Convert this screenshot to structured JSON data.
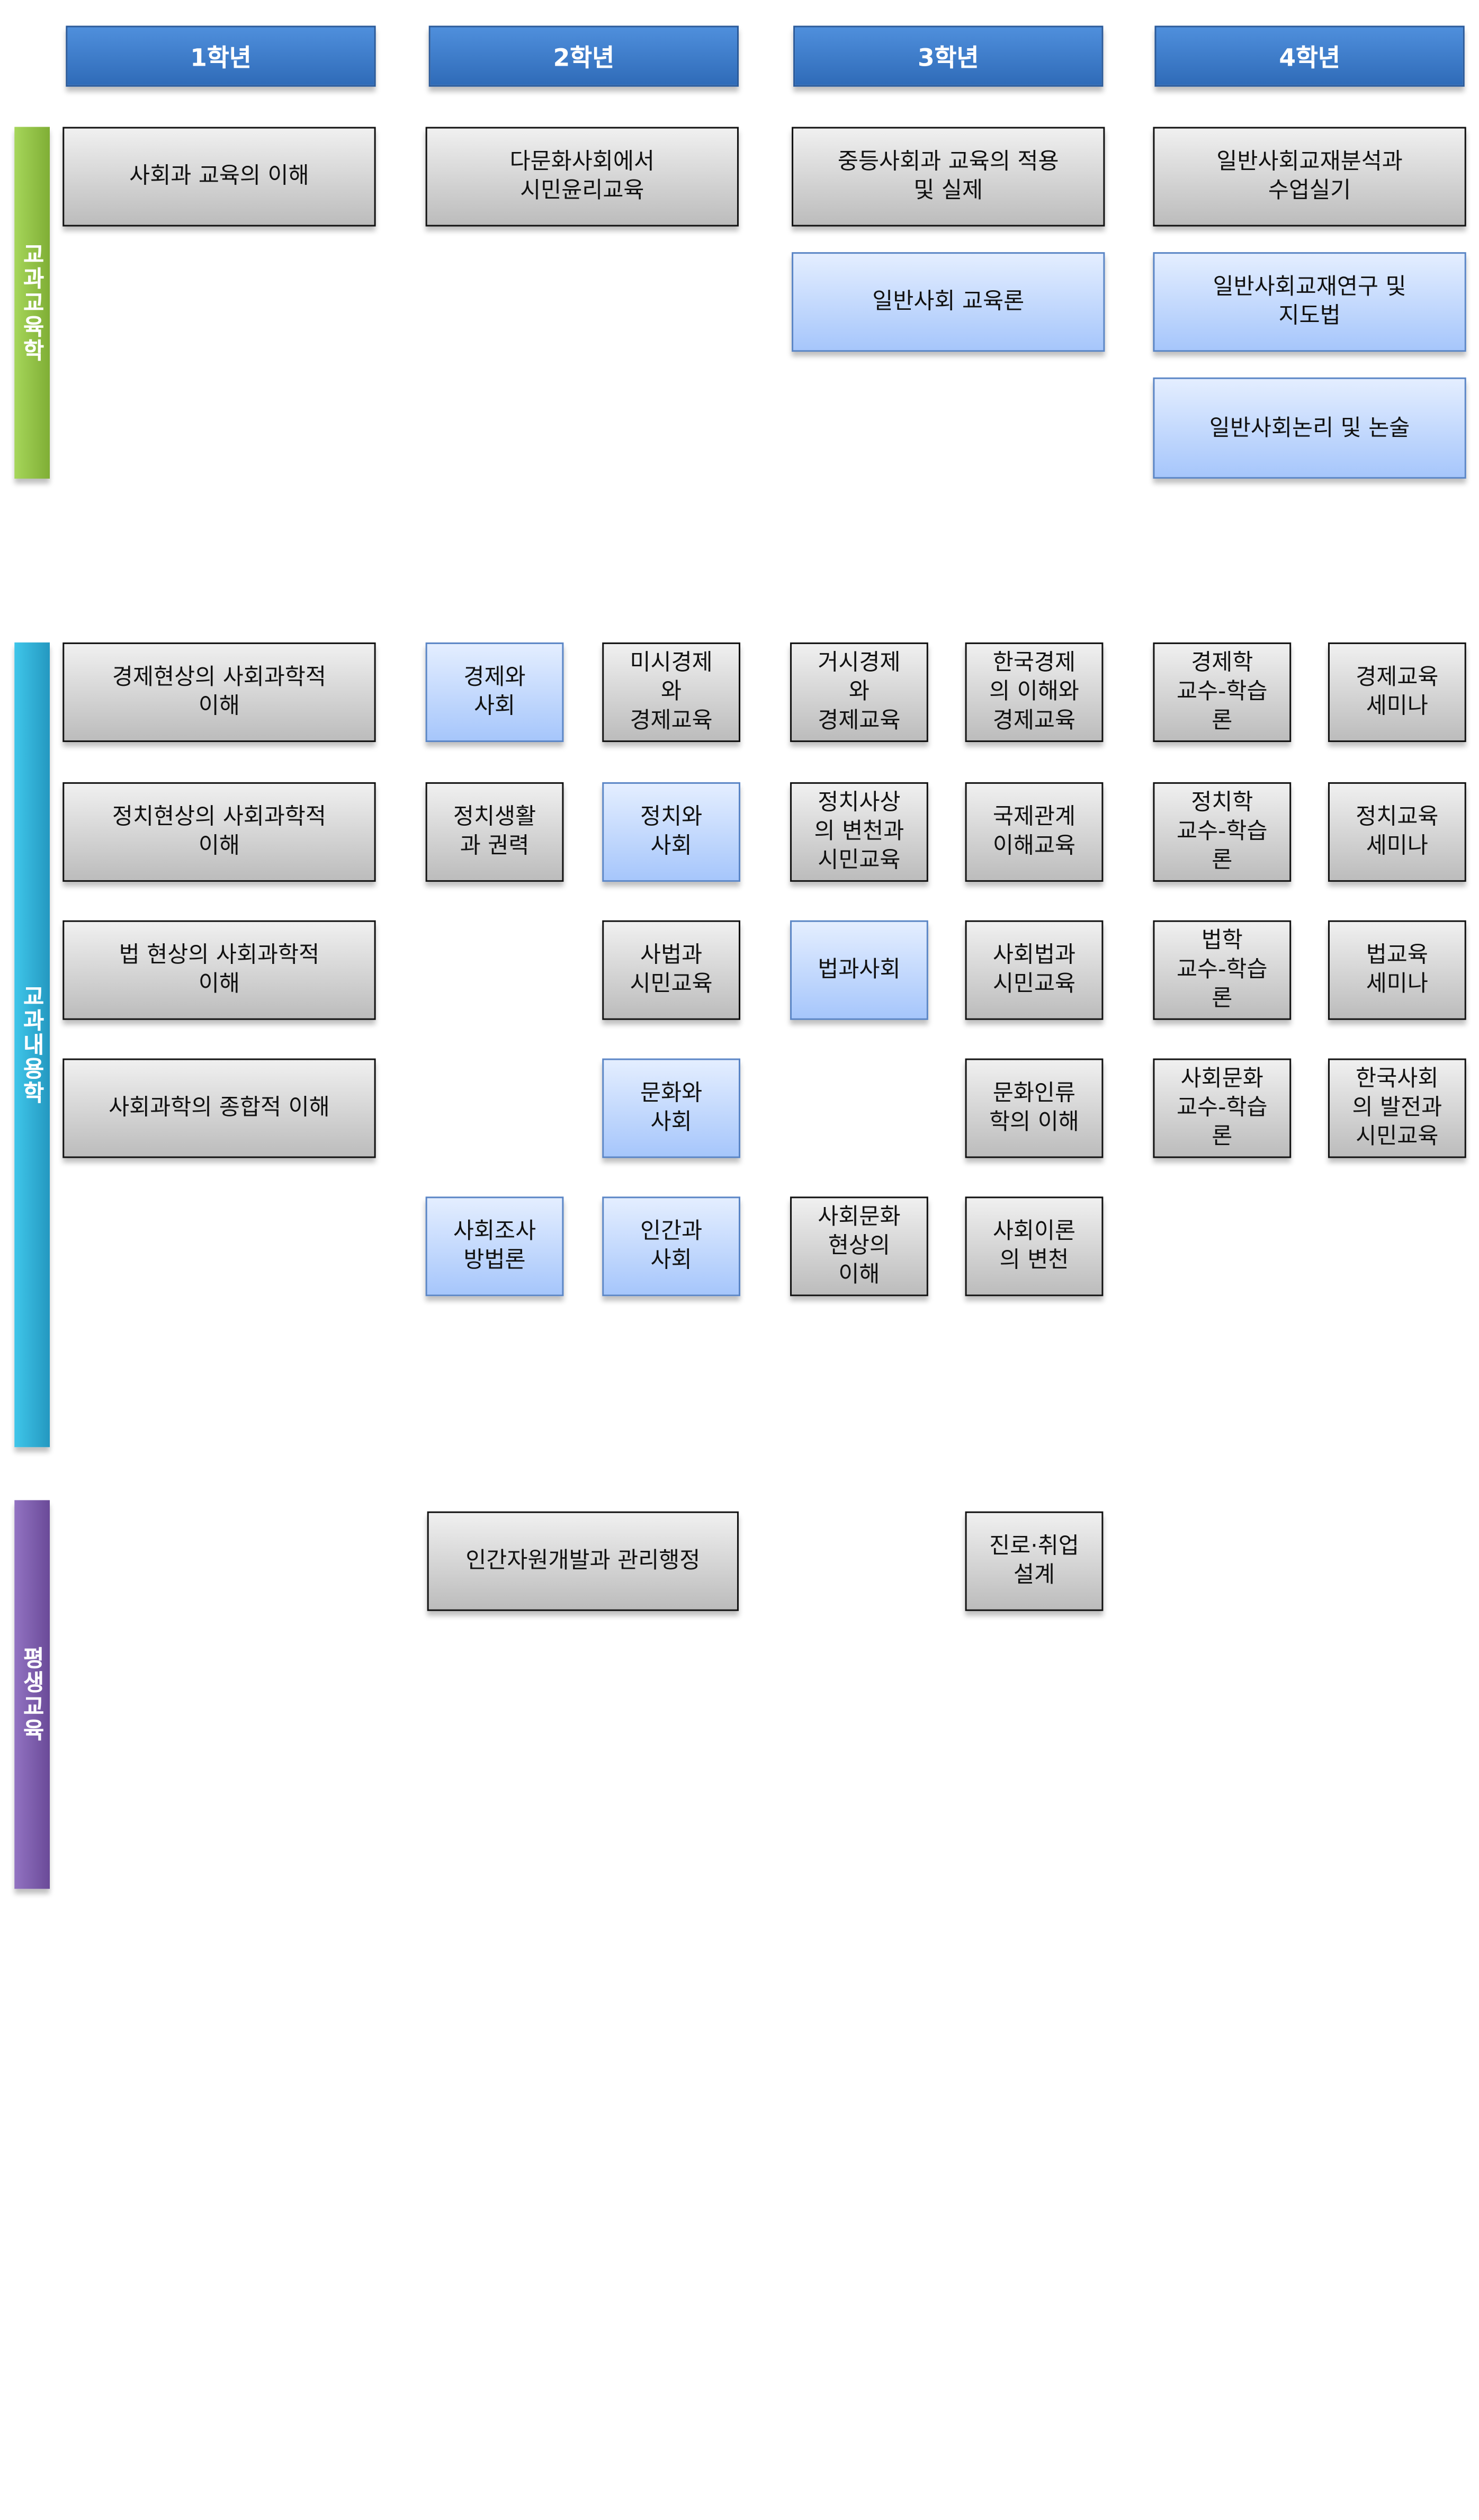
{
  "headers": [
    "1학년",
    "2학년",
    "3학년",
    "4학년"
  ],
  "colors": {
    "header": "#2f6bb8",
    "education_bar": "#8fbf3f",
    "content_bar": "#2fb0d8",
    "lifelong_bar": "#7b5aa8",
    "core_box": "#c8c8c8",
    "elective_box": "#a6c6fb"
  },
  "sections": [
    {
      "label": "교과교육학",
      "boxes": [
        {
          "label": "사회과 교육의 이해",
          "style": "gray"
        },
        {
          "label": "다문화사회에서\n시민윤리교육",
          "style": "gray"
        },
        {
          "label": "중등사회과 교육의 적용\n및 실제",
          "style": "gray"
        },
        {
          "label": "일반사회교재분석과\n수업실기",
          "style": "gray"
        },
        {
          "label": "일반사회 교육론",
          "style": "blue"
        },
        {
          "label": "일반사회교재연구 및\n지도법",
          "style": "blue"
        },
        {
          "label": "일반사회논리 및 논술",
          "style": "blue"
        }
      ]
    },
    {
      "label": "교과내용학",
      "boxes": [
        {
          "label": "경제현상의 사회과학적\n이해",
          "style": "gray"
        },
        {
          "label": "경제와\n사회",
          "style": "blue"
        },
        {
          "label": "미시경제\n와\n경제교육",
          "style": "gray"
        },
        {
          "label": "거시경제\n와\n경제교육",
          "style": "gray"
        },
        {
          "label": "한국경제\n의 이해와\n경제교육",
          "style": "gray"
        },
        {
          "label": "경제학\n교수-학습\n론",
          "style": "gray"
        },
        {
          "label": "경제교육\n세미나",
          "style": "gray"
        },
        {
          "label": "정치현상의 사회과학적\n이해",
          "style": "gray"
        },
        {
          "label": "정치생활\n과 권력",
          "style": "gray"
        },
        {
          "label": "정치와\n사회",
          "style": "blue"
        },
        {
          "label": "정치사상\n의 변천과\n시민교육",
          "style": "gray"
        },
        {
          "label": "국제관계\n이해교육",
          "style": "gray"
        },
        {
          "label": "정치학\n교수-학습\n론",
          "style": "gray"
        },
        {
          "label": "정치교육\n세미나",
          "style": "gray"
        },
        {
          "label": "법 현상의 사회과학적\n이해",
          "style": "gray"
        },
        {
          "label": "사법과\n시민교육",
          "style": "gray"
        },
        {
          "label": "법과사회",
          "style": "blue"
        },
        {
          "label": "사회법과\n시민교육",
          "style": "gray"
        },
        {
          "label": "법학\n교수-학습\n론",
          "style": "gray"
        },
        {
          "label": "법교육\n세미나",
          "style": "gray"
        },
        {
          "label": "사회과학의 종합적 이해",
          "style": "gray"
        },
        {
          "label": "문화와\n사회",
          "style": "blue"
        },
        {
          "label": "문화인류\n학의 이해",
          "style": "gray"
        },
        {
          "label": "사회문화\n교수-학습\n론",
          "style": "gray"
        },
        {
          "label": "한국사회\n의 발전과\n시민교육",
          "style": "gray"
        },
        {
          "label": "사회조사\n방법론",
          "style": "blue"
        },
        {
          "label": "인간과\n사회",
          "style": "blue"
        },
        {
          "label": "사회문화\n현상의\n이해",
          "style": "gray"
        },
        {
          "label": "사회이론\n의 변천",
          "style": "gray"
        }
      ]
    },
    {
      "label": "평생교육",
      "boxes": [
        {
          "label": "인간자원개발과 관리행정",
          "style": "gray"
        },
        {
          "label": "진로·취업\n설계",
          "style": "gray"
        }
      ]
    }
  ]
}
